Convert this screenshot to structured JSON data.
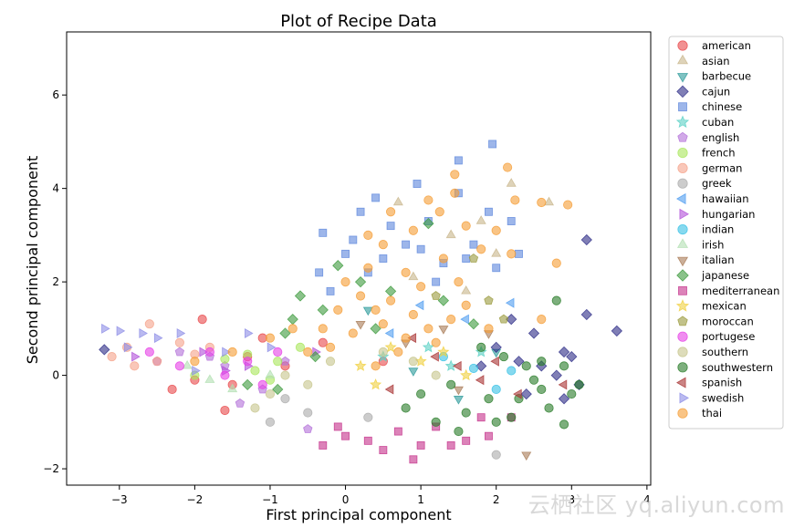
{
  "watermark": "云栖社区 yq.aliyun.com",
  "chart_data": {
    "type": "scatter",
    "title": "Plot of Recipe Data",
    "xlabel": "First principal component",
    "ylabel": "Second principal component",
    "xlim": [
      -3.7,
      4.05
    ],
    "ylim": [
      -2.35,
      7.35
    ],
    "xticks": [
      -3,
      -2,
      -1,
      0,
      1,
      2,
      3,
      4
    ],
    "yticks": [
      -2,
      0,
      2,
      4,
      6
    ],
    "xtick_labels": [
      "−3",
      "−2",
      "−1",
      "0",
      "1",
      "2",
      "3",
      "4"
    ],
    "ytick_labels": [
      "−2",
      "0",
      "2",
      "4",
      "6"
    ],
    "grid": false,
    "legend_position": "outside-right",
    "series": [
      {
        "name": "american",
        "marker": "circle",
        "color": "#e8474a",
        "points": [
          [
            -1.9,
            1.2
          ],
          [
            -1.1,
            0.8
          ],
          [
            -2.0,
            -0.1
          ],
          [
            -1.6,
            -0.75
          ],
          [
            -1.5,
            -0.2
          ],
          [
            -2.3,
            -0.3
          ],
          [
            -0.3,
            0.7
          ],
          [
            0.5,
            0.3
          ],
          [
            -1.3,
            0.4
          ],
          [
            -0.8,
            0.2
          ]
        ]
      },
      {
        "name": "asian",
        "marker": "triangle-up",
        "color": "#c8b58b",
        "points": [
          [
            0.7,
            3.7
          ],
          [
            2.7,
            3.7
          ],
          [
            2.2,
            4.1
          ],
          [
            1.8,
            3.3
          ],
          [
            1.4,
            3.0
          ],
          [
            2.0,
            2.6
          ],
          [
            0.9,
            2.1
          ],
          [
            1.6,
            1.8
          ]
        ]
      },
      {
        "name": "barbecue",
        "marker": "triangle-down",
        "color": "#2a9a9a",
        "points": [
          [
            0.9,
            0.1
          ],
          [
            1.5,
            -0.5
          ],
          [
            2.0,
            0.5
          ],
          [
            0.3,
            1.4
          ]
        ]
      },
      {
        "name": "cajun",
        "marker": "diamond",
        "color": "#2b2a86",
        "points": [
          [
            3.6,
            0.95
          ],
          [
            3.2,
            2.9
          ],
          [
            3.2,
            1.3
          ],
          [
            2.9,
            0.5
          ],
          [
            2.5,
            0.9
          ],
          [
            2.2,
            1.2
          ],
          [
            2.8,
            0.0
          ],
          [
            2.3,
            0.3
          ],
          [
            3.1,
            -0.2
          ],
          [
            -3.2,
            0.55
          ],
          [
            2.0,
            0.6
          ],
          [
            1.8,
            0.2
          ],
          [
            2.6,
            0.2
          ],
          [
            2.4,
            -0.4
          ],
          [
            2.9,
            -0.5
          ],
          [
            3.0,
            0.4
          ]
        ]
      },
      {
        "name": "chinese",
        "marker": "square",
        "color": "#5b86dc",
        "points": [
          [
            2.2,
            3.3
          ],
          [
            2.3,
            2.6
          ],
          [
            1.95,
            4.95
          ],
          [
            1.5,
            4.6
          ],
          [
            1.5,
            3.9
          ],
          [
            0.95,
            4.1
          ],
          [
            0.4,
            3.8
          ],
          [
            0.2,
            3.5
          ],
          [
            -0.3,
            3.05
          ],
          [
            -0.35,
            2.2
          ],
          [
            0.1,
            2.9
          ],
          [
            0.5,
            2.5
          ],
          [
            1.1,
            3.3
          ],
          [
            1.7,
            2.8
          ],
          [
            2.0,
            2.3
          ],
          [
            1.9,
            3.5
          ],
          [
            0.6,
            3.2
          ],
          [
            0.8,
            2.8
          ],
          [
            1.3,
            2.4
          ],
          [
            0.0,
            2.6
          ],
          [
            -0.2,
            1.8
          ],
          [
            0.3,
            2.2
          ],
          [
            1.0,
            2.7
          ],
          [
            1.6,
            2.5
          ],
          [
            1.2,
            2.0
          ]
        ]
      },
      {
        "name": "cuban",
        "marker": "star",
        "color": "#5ad1c5",
        "points": [
          [
            1.1,
            0.6
          ],
          [
            1.4,
            0.2
          ],
          [
            0.5,
            0.4
          ],
          [
            1.8,
            0.5
          ]
        ]
      },
      {
        "name": "english",
        "marker": "pentagon",
        "color": "#b36fd8",
        "points": [
          [
            -1.6,
            0.2
          ],
          [
            -1.1,
            -0.3
          ],
          [
            -2.2,
            0.5
          ],
          [
            -0.8,
            0.3
          ],
          [
            -1.8,
            0.4
          ],
          [
            -0.5,
            -1.15
          ],
          [
            -1.4,
            -0.6
          ],
          [
            -2.5,
            0.3
          ]
        ]
      },
      {
        "name": "french",
        "marker": "circle",
        "color": "#a8e65a",
        "points": [
          [
            -1.3,
            0.45
          ],
          [
            -0.9,
            0.3
          ],
          [
            -1.6,
            0.35
          ],
          [
            -0.6,
            0.6
          ],
          [
            -1.0,
            -0.1
          ],
          [
            -2.0,
            0.0
          ],
          [
            -1.2,
            0.1
          ]
        ]
      },
      {
        "name": "german",
        "marker": "circle",
        "color": "#f5a28a",
        "points": [
          [
            -2.6,
            1.1
          ],
          [
            -2.9,
            0.6
          ],
          [
            -3.1,
            0.4
          ],
          [
            -2.2,
            0.7
          ],
          [
            -1.8,
            0.6
          ],
          [
            -2.5,
            0.3
          ],
          [
            -2.8,
            0.2
          ],
          [
            -2.0,
            0.45
          ]
        ]
      },
      {
        "name": "greek",
        "marker": "circle",
        "color": "#aaaaaa",
        "points": [
          [
            -1.0,
            -1.0
          ],
          [
            2.0,
            -1.7
          ],
          [
            -0.5,
            -0.8
          ],
          [
            0.3,
            -0.9
          ],
          [
            -0.8,
            -0.5
          ]
        ]
      },
      {
        "name": "hawaiian",
        "marker": "triangle-left",
        "color": "#4f9cf0",
        "points": [
          [
            2.2,
            1.55
          ],
          [
            1.0,
            1.5
          ],
          [
            1.6,
            1.2
          ],
          [
            0.6,
            0.9
          ]
        ]
      },
      {
        "name": "hungarian",
        "marker": "triangle-right",
        "color": "#b04fd8",
        "points": [
          [
            -2.8,
            0.4
          ],
          [
            -1.9,
            0.5
          ],
          [
            -1.3,
            0.2
          ],
          [
            -0.4,
            0.5
          ],
          [
            -1.6,
            0.1
          ]
        ]
      },
      {
        "name": "indian",
        "marker": "circle",
        "color": "#35c0e5",
        "points": [
          [
            1.7,
            0.15
          ],
          [
            2.0,
            -0.3
          ],
          [
            1.3,
            0.4
          ],
          [
            2.2,
            0.1
          ]
        ]
      },
      {
        "name": "irish",
        "marker": "triangle-up",
        "color": "#b2e0b2",
        "points": [
          [
            -1.5,
            -0.3
          ],
          [
            -2.1,
            0.2
          ],
          [
            -1.0,
            0.0
          ],
          [
            -1.8,
            -0.1
          ]
        ]
      },
      {
        "name": "italian",
        "marker": "triangle-down",
        "color": "#a87a55",
        "points": [
          [
            2.4,
            -1.7
          ],
          [
            1.3,
            1.0
          ],
          [
            0.8,
            0.7
          ],
          [
            1.5,
            -0.3
          ],
          [
            0.2,
            1.1
          ],
          [
            1.9,
            0.9
          ]
        ]
      },
      {
        "name": "japanese",
        "marker": "diamond",
        "color": "#3c9a3c",
        "points": [
          [
            1.1,
            3.25
          ],
          [
            -0.1,
            2.35
          ],
          [
            0.6,
            1.8
          ],
          [
            -0.6,
            1.7
          ],
          [
            -0.7,
            1.2
          ],
          [
            -0.3,
            1.4
          ],
          [
            -0.8,
            0.9
          ],
          [
            0.2,
            2.0
          ],
          [
            1.3,
            1.6
          ],
          [
            -1.3,
            -0.2
          ],
          [
            -0.4,
            0.4
          ],
          [
            0.4,
            1.0
          ],
          [
            1.7,
            1.1
          ],
          [
            -0.9,
            -0.3
          ]
        ]
      },
      {
        "name": "mediterranean",
        "marker": "square",
        "color": "#c4308a",
        "points": [
          [
            0.9,
            -1.8
          ],
          [
            -0.3,
            -1.5
          ],
          [
            0.5,
            -1.6
          ],
          [
            1.4,
            -1.5
          ],
          [
            0.0,
            -1.3
          ],
          [
            1.9,
            -1.3
          ],
          [
            0.7,
            -1.2
          ],
          [
            1.2,
            -1.1
          ],
          [
            -0.1,
            -1.1
          ],
          [
            1.6,
            -1.4
          ],
          [
            2.2,
            -0.9
          ],
          [
            0.3,
            -1.4
          ],
          [
            1.0,
            -1.5
          ],
          [
            1.8,
            -0.9
          ]
        ]
      },
      {
        "name": "mexican",
        "marker": "star",
        "color": "#f0d040",
        "points": [
          [
            0.6,
            0.6
          ],
          [
            1.0,
            0.3
          ],
          [
            0.2,
            0.2
          ],
          [
            1.3,
            0.5
          ],
          [
            0.4,
            -0.2
          ],
          [
            1.6,
            0.0
          ]
        ]
      },
      {
        "name": "moroccan",
        "marker": "pentagon",
        "color": "#9a9a3c",
        "points": [
          [
            1.7,
            2.5
          ],
          [
            1.9,
            1.6
          ],
          [
            2.1,
            1.2
          ],
          [
            1.2,
            1.7
          ]
        ]
      },
      {
        "name": "portugese",
        "marker": "circle",
        "color": "#e640e6",
        "points": [
          [
            -1.8,
            0.5
          ],
          [
            -1.3,
            0.3
          ],
          [
            -0.9,
            0.5
          ],
          [
            -2.2,
            0.2
          ],
          [
            -1.6,
            0.0
          ],
          [
            -2.6,
            0.5
          ],
          [
            -1.1,
            -0.2
          ]
        ]
      },
      {
        "name": "southern",
        "marker": "circle",
        "color": "#c7c58c",
        "points": [
          [
            -1.2,
            -0.7
          ],
          [
            -0.8,
            0.0
          ],
          [
            -0.2,
            0.3
          ],
          [
            0.5,
            0.5
          ],
          [
            1.2,
            0.0
          ],
          [
            -0.5,
            -0.2
          ],
          [
            0.9,
            0.3
          ],
          [
            -1.0,
            -0.4
          ]
        ]
      },
      {
        "name": "southwestern",
        "marker": "circle",
        "color": "#267a26",
        "points": [
          [
            3.0,
            -0.4
          ],
          [
            2.9,
            -1.05
          ],
          [
            2.8,
            1.6
          ],
          [
            2.6,
            -0.3
          ],
          [
            2.4,
            0.2
          ],
          [
            2.7,
            -0.7
          ],
          [
            2.2,
            -0.9
          ],
          [
            1.9,
            -0.5
          ],
          [
            2.5,
            -0.1
          ],
          [
            3.1,
            -0.2
          ],
          [
            1.6,
            -0.8
          ],
          [
            2.1,
            0.4
          ],
          [
            1.4,
            -0.2
          ],
          [
            2.3,
            -0.5
          ],
          [
            1.0,
            -0.4
          ],
          [
            1.8,
            0.6
          ],
          [
            2.0,
            -1.0
          ],
          [
            0.8,
            -0.7
          ],
          [
            2.6,
            0.3
          ],
          [
            1.2,
            -1.0
          ],
          [
            2.9,
            0.2
          ],
          [
            1.5,
            -1.2
          ]
        ]
      },
      {
        "name": "spanish",
        "marker": "triangle-left",
        "color": "#a83232",
        "points": [
          [
            2.9,
            -0.2
          ],
          [
            2.3,
            -0.4
          ],
          [
            1.8,
            -0.1
          ],
          [
            1.2,
            0.4
          ],
          [
            0.6,
            -0.3
          ],
          [
            1.5,
            0.2
          ],
          [
            0.9,
            0.8
          ],
          [
            2.0,
            0.3
          ]
        ]
      },
      {
        "name": "swedish",
        "marker": "triangle-right",
        "color": "#8c8ce6",
        "points": [
          [
            -3.2,
            1.0
          ],
          [
            -3.0,
            0.95
          ],
          [
            -2.7,
            0.9
          ],
          [
            -2.9,
            0.6
          ],
          [
            -2.5,
            0.8
          ],
          [
            -2.2,
            0.9
          ],
          [
            -1.3,
            0.9
          ],
          [
            -1.0,
            0.6
          ],
          [
            -2.0,
            0.1
          ],
          [
            -1.6,
            0.5
          ]
        ]
      },
      {
        "name": "thai",
        "marker": "circle",
        "color": "#f59c34",
        "points": [
          [
            2.15,
            4.45
          ],
          [
            2.25,
            3.75
          ],
          [
            2.6,
            3.7
          ],
          [
            2.95,
            3.65
          ],
          [
            1.45,
            4.3
          ],
          [
            1.45,
            3.9
          ],
          [
            1.1,
            3.75
          ],
          [
            1.25,
            3.5
          ],
          [
            2.0,
            3.1
          ],
          [
            1.6,
            3.2
          ],
          [
            2.8,
            2.4
          ],
          [
            2.2,
            2.6
          ],
          [
            0.6,
            3.5
          ],
          [
            0.9,
            3.1
          ],
          [
            0.3,
            3.0
          ],
          [
            0.5,
            2.8
          ],
          [
            1.8,
            2.7
          ],
          [
            0.8,
            2.2
          ],
          [
            1.0,
            1.9
          ],
          [
            0.3,
            2.3
          ],
          [
            0.6,
            1.6
          ],
          [
            1.3,
            2.5
          ],
          [
            1.5,
            2.0
          ],
          [
            0.0,
            2.0
          ],
          [
            0.2,
            1.7
          ],
          [
            -0.1,
            1.4
          ],
          [
            0.5,
            1.1
          ],
          [
            0.9,
            1.3
          ],
          [
            1.6,
            1.5
          ],
          [
            1.9,
            1.0
          ],
          [
            0.1,
            0.9
          ],
          [
            -0.3,
            1.0
          ],
          [
            0.7,
            0.5
          ],
          [
            1.2,
            0.7
          ],
          [
            -0.7,
            1.0
          ],
          [
            -0.5,
            0.5
          ],
          [
            0.4,
            0.2
          ],
          [
            -1.0,
            0.8
          ],
          [
            -1.5,
            0.5
          ],
          [
            -2.0,
            0.3
          ],
          [
            1.1,
            1.0
          ],
          [
            0.4,
            1.4
          ],
          [
            1.4,
            1.2
          ],
          [
            -0.2,
            0.6
          ],
          [
            2.6,
            1.2
          ],
          [
            0.8,
            0.8
          ]
        ]
      }
    ]
  }
}
